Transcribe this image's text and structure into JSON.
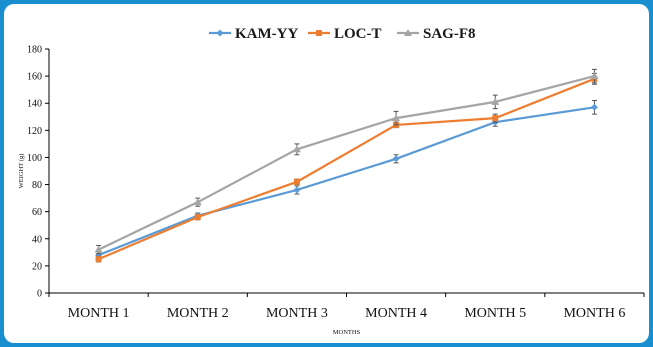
{
  "chart_data": {
    "type": "line",
    "title": "",
    "xlabel": "MONTHS",
    "ylabel": "WEIGHT   (g)",
    "ylim": [
      0,
      180
    ],
    "yticks": [
      0,
      20,
      40,
      60,
      80,
      100,
      120,
      140,
      160,
      180
    ],
    "grid": false,
    "legend_position": "top-center",
    "categories": [
      "MONTH 1",
      "MONTH 2",
      "MONTH 3",
      "MONTH 4",
      "MONTH 5",
      "MONTH 6"
    ],
    "series": [
      {
        "name": "KAM-YY",
        "color": "#5b9bd5",
        "marker": "diamond",
        "values": [
          28,
          57,
          76,
          99,
          126,
          137
        ],
        "errors": [
          3,
          2,
          3,
          3,
          3,
          5
        ]
      },
      {
        "name": "LOC-T",
        "color": "#ed7d31",
        "marker": "square",
        "values": [
          25,
          56,
          82,
          124,
          129,
          158
        ],
        "errors": [
          2,
          2,
          2,
          2,
          3,
          4
        ]
      },
      {
        "name": "SAG-F8",
        "color": "#a5a5a5",
        "marker": "triangle",
        "values": [
          32,
          67,
          106,
          129,
          141,
          160
        ],
        "errors": [
          3,
          3,
          4,
          5,
          5,
          5
        ]
      }
    ]
  }
}
